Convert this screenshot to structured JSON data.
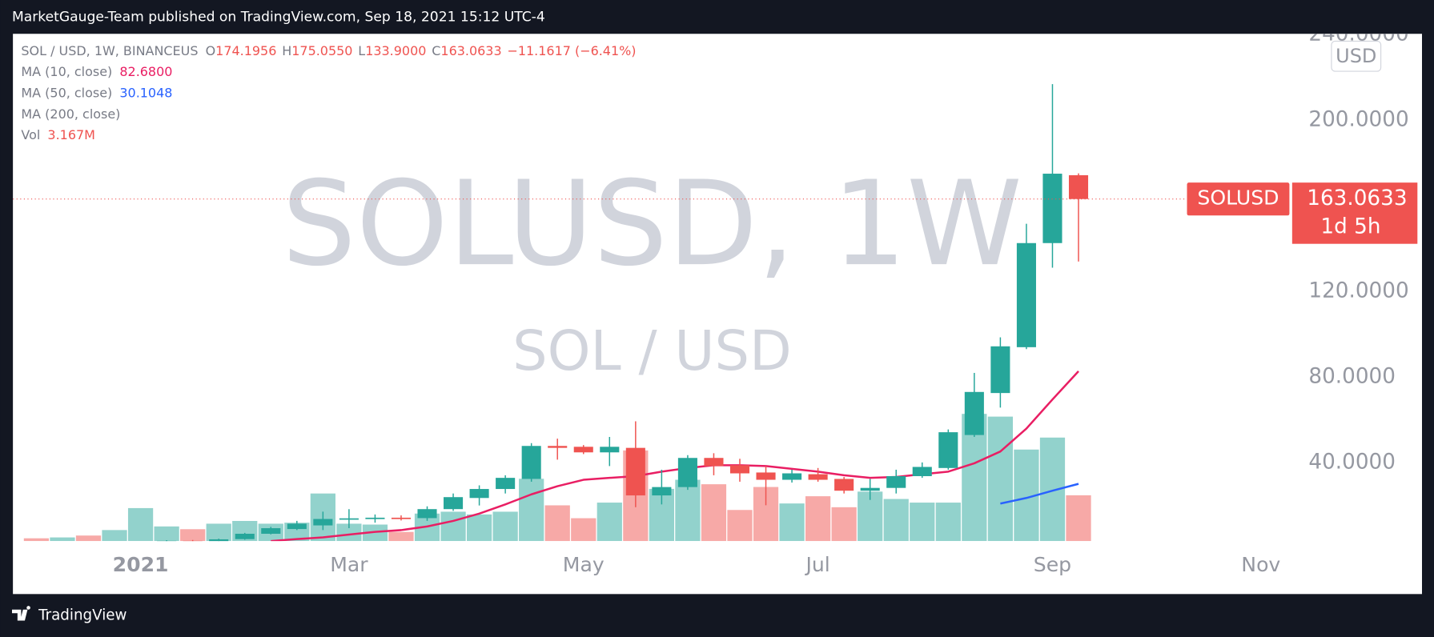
{
  "header": {
    "byline": "MarketGauge-Team published on TradingView.com, Sep 18, 2021 15:12 UTC-4"
  },
  "footer": {
    "brand": "TradingView"
  },
  "chart_data": {
    "type": "candlestick",
    "symbol": "SOL / USD, 1W, BINANCEUS",
    "ohlc_legend": [
      {
        "key": "O",
        "label": "174.1956"
      },
      {
        "key": "H",
        "label": "175.0550"
      },
      {
        "key": "L",
        "label": "133.9000"
      },
      {
        "key": "C",
        "label": "163.0633"
      }
    ],
    "change": "−11.1617 (−6.41%)",
    "watermark": "SOLUSD, 1W",
    "watermark_sub": "SOL / USD",
    "currency": "USD",
    "last_price": {
      "symbol": "SOLUSD",
      "price": "163.0633",
      "countdown": "1d 5h"
    },
    "up_color": "#26a69a",
    "down_color": "#ef5350",
    "grid": false,
    "open": [
      1.7,
      1.5,
      1.7,
      1.5,
      1.8,
      2.4,
      3.5,
      3.1,
      4.3,
      6.8,
      9.0,
      10.7,
      13.5,
      13.8,
      14.3,
      14.1,
      18.3,
      23.5,
      27.7,
      32.4,
      47.8,
      47.4,
      44.8,
      46.9,
      24.7,
      28.6,
      42.2,
      38.8,
      35.4,
      32.0,
      34.6,
      32.4,
      26.9,
      28.2,
      33.7,
      37.5,
      52.9,
      72.5,
      93.9,
      142.5,
      174.1956
    ],
    "high": [
      1.9,
      1.8,
      1.9,
      2.0,
      2.6,
      3.8,
      3.9,
      4.5,
      7.2,
      10.0,
      12.8,
      17.1,
      18.3,
      15.8,
      15.4,
      19.6,
      25.6,
      29.4,
      34.1,
      49.1,
      51.2,
      48.2,
      52.0,
      59.3,
      36.7,
      43.5,
      44.4,
      41.8,
      38.4,
      36.7,
      37.5,
      33.3,
      32.4,
      36.7,
      40.1,
      55.5,
      81.9,
      98.5,
      151.5,
      216.7,
      175.055
    ],
    "low": [
      1.4,
      1.4,
      1.4,
      1.4,
      1.7,
      2.2,
      2.9,
      3.0,
      4.0,
      6.5,
      8.5,
      8.5,
      9.4,
      12.0,
      13.0,
      12.8,
      17.5,
      20.0,
      25.6,
      31.1,
      41.4,
      44.0,
      38.4,
      19.2,
      20.5,
      27.3,
      34.1,
      31.1,
      20.1,
      30.7,
      31.1,
      25.6,
      22.6,
      25.6,
      32.9,
      36.7,
      52.0,
      65.7,
      93.0,
      131.0,
      133.9
    ],
    "close": [
      1.5,
      1.7,
      1.5,
      1.8,
      2.4,
      3.5,
      3.1,
      4.2,
      6.8,
      9.4,
      11.5,
      13.7,
      14.0,
      14.3,
      13.8,
      18.3,
      23.9,
      27.7,
      32.9,
      47.8,
      46.9,
      44.8,
      47.4,
      24.7,
      28.6,
      42.2,
      38.4,
      35.0,
      32.0,
      35.0,
      32.0,
      26.9,
      28.2,
      33.7,
      38.0,
      54.2,
      73.0,
      94.3,
      142.5,
      174.9,
      163.0633
    ],
    "volume_name": "Vol",
    "volume_last_label": "3.167M",
    "volume": [
      190000,
      250000,
      380000,
      760000,
      2280000,
      1010000,
      820000,
      1200000,
      1390000,
      1200000,
      1270000,
      3290000,
      1200000,
      1140000,
      630000,
      1900000,
      2030000,
      1840000,
      2030000,
      4310000,
      2470000,
      1580000,
      2660000,
      6270000,
      3610000,
      4240000,
      3930000,
      2150000,
      3740000,
      2600000,
      3100000,
      2340000,
      3420000,
      2910000,
      2660000,
      2660000,
      8800000,
      8610000,
      6330000,
      7160000,
      3167000
    ],
    "volume_lim": [
      0,
      35100000
    ],
    "series": [
      {
        "name": "MA (10, close)",
        "color": "#e91e63",
        "last_label": "82.6800",
        "values": [
          null,
          null,
          null,
          null,
          null,
          null,
          null,
          null,
          null,
          3.4,
          4.3,
          5.1,
          6.4,
          7.7,
          8.5,
          10.2,
          12.8,
          16.2,
          20.5,
          25.2,
          29.0,
          32.0,
          32.9,
          33.7,
          35.8,
          37.5,
          38.8,
          38.8,
          38.4,
          37.1,
          35.8,
          34.1,
          32.9,
          33.3,
          34.6,
          35.8,
          39.7,
          45.2,
          55.9,
          69.5,
          82.68
        ]
      },
      {
        "name": "MA (50, close)",
        "color": "#2962ff",
        "last_label": "30.1048",
        "values": [
          null,
          null,
          null,
          null,
          null,
          null,
          null,
          null,
          null,
          null,
          null,
          null,
          null,
          null,
          null,
          null,
          null,
          null,
          null,
          null,
          null,
          null,
          null,
          null,
          null,
          null,
          null,
          null,
          null,
          null,
          null,
          null,
          null,
          null,
          null,
          null,
          null,
          20.9,
          23.5,
          26.9,
          30.1048
        ]
      },
      {
        "name": "MA (200, close)"
      }
    ],
    "xlim": [
      -0.9,
      48.2
    ],
    "xticks": [
      {
        "value": 4,
        "label": "2021"
      },
      {
        "value": 12,
        "label": "Mar"
      },
      {
        "value": 21,
        "label": "May"
      },
      {
        "value": 30,
        "label": "Jul"
      },
      {
        "value": 39,
        "label": "Sep"
      },
      {
        "value": 47,
        "label": "Nov"
      }
    ],
    "ylim": [
      3.4,
      240.2
    ],
    "yticks": [
      {
        "value": 40,
        "label": "40.0000"
      },
      {
        "value": 80,
        "label": "80.0000"
      },
      {
        "value": 120,
        "label": "120.0000"
      },
      {
        "value": 200,
        "label": "200.0000"
      },
      {
        "value": 240,
        "label": "240.0000"
      }
    ]
  }
}
